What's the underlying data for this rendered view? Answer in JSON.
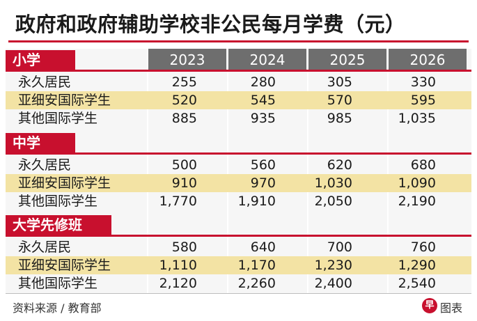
{
  "title": "政府和政府辅助学校非公民每月学费（元）",
  "years": [
    "2023",
    "2024",
    "2025",
    "2026"
  ],
  "sections": [
    {
      "name": "小学",
      "rows": [
        {
          "label": "永久居民",
          "values": [
            "255",
            "280",
            "305",
            "330"
          ]
        },
        {
          "label": "亚细安国际学生",
          "values": [
            "520",
            "545",
            "570",
            "595"
          ]
        },
        {
          "label": "其他国际学生",
          "values": [
            "885",
            "935",
            "985",
            "1,035"
          ]
        }
      ]
    },
    {
      "name": "中学",
      "rows": [
        {
          "label": "永久居民",
          "values": [
            "500",
            "560",
            "620",
            "680"
          ]
        },
        {
          "label": "亚细安国际学生",
          "values": [
            "910",
            "970",
            "1,030",
            "1,090"
          ]
        },
        {
          "label": "其他国际学生",
          "values": [
            "1,770",
            "1,910",
            "2,050",
            "2,190"
          ]
        }
      ]
    },
    {
      "name": "大学先修班",
      "rows": [
        {
          "label": "永久居民",
          "values": [
            "580",
            "640",
            "700",
            "760"
          ]
        },
        {
          "label": "亚细安国际学生",
          "values": [
            "1,110",
            "1,170",
            "1,230",
            "1,290"
          ]
        },
        {
          "label": "其他国际学生",
          "values": [
            "2,120",
            "2,260",
            "2,400",
            "2,540"
          ]
        }
      ]
    }
  ],
  "footer": {
    "source": "资料来源 / 教育部",
    "logo_glyph": "早",
    "logo_text": "图表"
  },
  "colors": {
    "accent": "#c8102e",
    "header_gray": "#6e6e6e",
    "highlight": "#f3e3a4"
  },
  "chart_data": {
    "type": "table",
    "title": "政府和政府辅助学校非公民每月学费（元）",
    "columns": [
      "2023",
      "2024",
      "2025",
      "2026"
    ],
    "groups": [
      {
        "name": "小学",
        "series": [
          {
            "name": "永久居民",
            "values": [
              255,
              280,
              305,
              330
            ]
          },
          {
            "name": "亚细安国际学生",
            "values": [
              520,
              545,
              570,
              595
            ]
          },
          {
            "name": "其他国际学生",
            "values": [
              885,
              935,
              985,
              1035
            ]
          }
        ]
      },
      {
        "name": "中学",
        "series": [
          {
            "name": "永久居民",
            "values": [
              500,
              560,
              620,
              680
            ]
          },
          {
            "name": "亚细安国际学生",
            "values": [
              910,
              970,
              1030,
              1090
            ]
          },
          {
            "name": "其他国际学生",
            "values": [
              1770,
              1910,
              2050,
              2190
            ]
          }
        ]
      },
      {
        "name": "大学先修班",
        "series": [
          {
            "name": "永久居民",
            "values": [
              580,
              640,
              700,
              760
            ]
          },
          {
            "name": "亚细安国际学生",
            "values": [
              1110,
              1170,
              1230,
              1290
            ]
          },
          {
            "name": "其他国际学生",
            "values": [
              2120,
              2260,
              2400,
              2540
            ]
          }
        ]
      }
    ]
  }
}
